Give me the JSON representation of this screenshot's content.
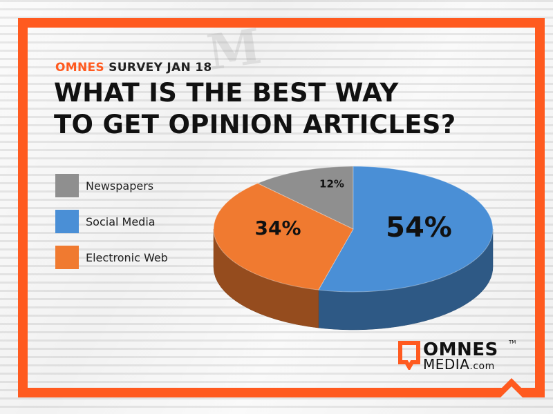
{
  "header": {
    "kicker_brand": "OMNES",
    "kicker_rest": "SURVEY JAN 18",
    "title_line1": "WHAT IS THE BEST WAY",
    "title_line2": "TO GET OPINION ARTICLES?"
  },
  "legend": {
    "items": [
      {
        "label": "Newspapers",
        "color": "#8f8f8f"
      },
      {
        "label": "Social Media",
        "color": "#4a8fd6"
      },
      {
        "label": "Electronic Web",
        "color": "#f07a30"
      }
    ]
  },
  "chart_data": {
    "type": "pie",
    "categories": [
      "Newspapers",
      "Social Media",
      "Electronic Web"
    ],
    "values": [
      12,
      54,
      34
    ],
    "labels": [
      "12%",
      "54%",
      "34%"
    ],
    "colors": [
      "#8f8f8f",
      "#4a8fd6",
      "#f07a30"
    ],
    "style": "3d",
    "legend_placement": "left"
  },
  "logo": {
    "name": "OMNES",
    "tm": "TM",
    "media": "MEDIA",
    "dotcom": ".com"
  },
  "colors": {
    "accent": "#ff5a1f"
  }
}
